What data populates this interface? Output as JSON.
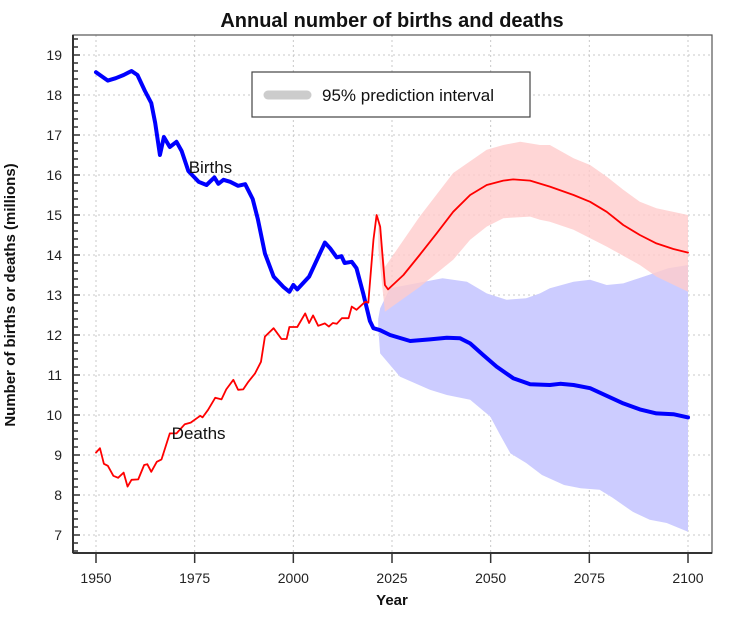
{
  "chart_data": {
    "type": "line",
    "title": "Annual number of births and deaths",
    "xlabel": "Year",
    "ylabel": "Number of births or deaths (millions)",
    "xlim": [
      1950,
      2100
    ],
    "ylim": [
      7,
      19
    ],
    "x_ticks": [
      1950,
      1975,
      2000,
      2025,
      2050,
      2075,
      2100
    ],
    "y_ticks": [
      7,
      8,
      9,
      10,
      11,
      12,
      13,
      14,
      15,
      16,
      17,
      18,
      19
    ],
    "y_minor_step": 0.2,
    "grid": true,
    "legend": {
      "position": "top-center",
      "entries": [
        {
          "label": "95% prediction interval",
          "color": "#cccccc"
        }
      ]
    },
    "series": [
      {
        "name": "Births",
        "label": "Births",
        "color": "#0000ff",
        "kind": "observed+projection",
        "points": [
          [
            1950,
            18.57
          ],
          [
            1953,
            18.36
          ],
          [
            1955,
            18.42
          ],
          [
            1957,
            18.5
          ],
          [
            1959,
            18.6
          ],
          [
            1960.5,
            18.5
          ],
          [
            1962.4,
            18.1
          ],
          [
            1964,
            17.8
          ],
          [
            1965,
            17.3
          ],
          [
            1966.2,
            16.5
          ],
          [
            1967.2,
            16.95
          ],
          [
            1968.7,
            16.7
          ],
          [
            1970.4,
            16.83
          ],
          [
            1971.7,
            16.6
          ],
          [
            1973.4,
            16.1
          ],
          [
            1976,
            15.83
          ],
          [
            1978,
            15.75
          ],
          [
            1980,
            15.94
          ],
          [
            1981,
            15.78
          ],
          [
            1982.3,
            15.88
          ],
          [
            1984,
            15.83
          ],
          [
            1986,
            15.73
          ],
          [
            1987.8,
            15.77
          ],
          [
            1989.7,
            15.4
          ],
          [
            1991,
            14.9
          ],
          [
            1992.8,
            14.04
          ],
          [
            1995,
            13.46
          ],
          [
            1997.5,
            13.2
          ],
          [
            1999,
            13.08
          ],
          [
            2000,
            13.25
          ],
          [
            2001,
            13.14
          ],
          [
            2004,
            13.46
          ],
          [
            2008,
            14.31
          ],
          [
            2009.3,
            14.17
          ],
          [
            2011,
            13.94
          ],
          [
            2012.2,
            13.97
          ],
          [
            2013,
            13.8
          ],
          [
            2014.8,
            13.83
          ],
          [
            2016,
            13.67
          ],
          [
            2017.7,
            13.04
          ],
          [
            2019.4,
            12.35
          ],
          [
            2020.3,
            12.17
          ],
          [
            2022,
            12.12
          ],
          [
            2024.5,
            12.0
          ],
          [
            2029.6,
            11.85
          ],
          [
            2034.6,
            11.89
          ],
          [
            2038.9,
            11.93
          ],
          [
            2042.2,
            11.92
          ],
          [
            2044.8,
            11.79
          ],
          [
            2048.1,
            11.5
          ],
          [
            2051.5,
            11.21
          ],
          [
            2055.7,
            10.92
          ],
          [
            2060,
            10.77
          ],
          [
            2065,
            10.75
          ],
          [
            2067.6,
            10.78
          ],
          [
            2071,
            10.75
          ],
          [
            2075.2,
            10.67
          ],
          [
            2079.4,
            10.48
          ],
          [
            2083.6,
            10.29
          ],
          [
            2087.8,
            10.14
          ],
          [
            2092,
            10.04
          ],
          [
            2096.3,
            10.02
          ],
          [
            2100,
            9.94
          ]
        ],
        "interval_95": {
          "fill": "#ccccff",
          "upper": [
            [
              2021.5,
              12.4
            ],
            [
              2022,
              12.67
            ],
            [
              2024.5,
              13.17
            ],
            [
              2031,
              13.29
            ],
            [
              2037.8,
              13.42
            ],
            [
              2044,
              13.33
            ],
            [
              2049,
              13.04
            ],
            [
              2054,
              12.88
            ],
            [
              2059,
              12.92
            ],
            [
              2062.5,
              13.04
            ],
            [
              2065,
              13.17
            ],
            [
              2071,
              13.33
            ],
            [
              2075.2,
              13.38
            ],
            [
              2079.4,
              13.25
            ],
            [
              2083.6,
              13.29
            ],
            [
              2090,
              13.5
            ],
            [
              2095,
              13.67
            ],
            [
              2100,
              13.75
            ]
          ],
          "lower": [
            [
              2021.5,
              12.2
            ],
            [
              2022,
              11.54
            ],
            [
              2027,
              10.96
            ],
            [
              2034.6,
              10.63
            ],
            [
              2038.9,
              10.5
            ],
            [
              2044.8,
              10.38
            ],
            [
              2049.9,
              9.96
            ],
            [
              2052.4,
              9.5
            ],
            [
              2055,
              9.04
            ],
            [
              2059,
              8.8
            ],
            [
              2063,
              8.5
            ],
            [
              2068.6,
              8.25
            ],
            [
              2072.8,
              8.17
            ],
            [
              2077.6,
              8.13
            ],
            [
              2080.9,
              7.93
            ],
            [
              2086,
              7.58
            ],
            [
              2090.3,
              7.38
            ],
            [
              2094.6,
              7.3
            ],
            [
              2100,
              7.08
            ]
          ]
        }
      },
      {
        "name": "Deaths",
        "label": "Deaths",
        "color": "#ff0000",
        "kind": "observed+projection",
        "points": [
          [
            1950,
            9.06
          ],
          [
            1951,
            9.17
          ],
          [
            1952,
            8.78
          ],
          [
            1953,
            8.73
          ],
          [
            1954.4,
            8.48
          ],
          [
            1955.6,
            8.43
          ],
          [
            1957,
            8.56
          ],
          [
            1958,
            8.21
          ],
          [
            1959,
            8.38
          ],
          [
            1960.7,
            8.39
          ],
          [
            1962.2,
            8.75
          ],
          [
            1963,
            8.77
          ],
          [
            1964,
            8.58
          ],
          [
            1965.4,
            8.83
          ],
          [
            1966.6,
            8.89
          ],
          [
            1968.7,
            9.54
          ],
          [
            1970.4,
            9.54
          ],
          [
            1972.5,
            9.77
          ],
          [
            1974,
            9.81
          ],
          [
            1976.4,
            9.98
          ],
          [
            1977,
            9.94
          ],
          [
            1978.4,
            10.13
          ],
          [
            1980.2,
            10.43
          ],
          [
            1981.8,
            10.39
          ],
          [
            1983,
            10.64
          ],
          [
            1984.8,
            10.88
          ],
          [
            1986,
            10.63
          ],
          [
            1987.3,
            10.64
          ],
          [
            1988.6,
            10.83
          ],
          [
            1990.3,
            11.04
          ],
          [
            1991.8,
            11.33
          ],
          [
            1992.8,
            11.96
          ],
          [
            1995,
            12.17
          ],
          [
            1997,
            11.9
          ],
          [
            1998.3,
            11.9
          ],
          [
            1999,
            12.2
          ],
          [
            2001,
            12.2
          ],
          [
            2003,
            12.54
          ],
          [
            2004,
            12.3
          ],
          [
            2005,
            12.49
          ],
          [
            2006.3,
            12.23
          ],
          [
            2008,
            12.29
          ],
          [
            2009,
            12.21
          ],
          [
            2010,
            12.3
          ],
          [
            2011,
            12.28
          ],
          [
            2012.3,
            12.42
          ],
          [
            2014,
            12.42
          ],
          [
            2014.8,
            12.71
          ],
          [
            2016,
            12.63
          ],
          [
            2018.2,
            12.83
          ],
          [
            2019,
            12.81
          ],
          [
            2020.3,
            14.38
          ],
          [
            2021.1,
            15.0
          ],
          [
            2022,
            14.71
          ],
          [
            2023.2,
            13.25
          ],
          [
            2024,
            13.14
          ],
          [
            2027.9,
            13.5
          ],
          [
            2032,
            14.0
          ],
          [
            2036.3,
            14.54
          ],
          [
            2040.5,
            15.08
          ],
          [
            2044.8,
            15.5
          ],
          [
            2049,
            15.75
          ],
          [
            2053.2,
            15.86
          ],
          [
            2055.7,
            15.89
          ],
          [
            2060,
            15.86
          ],
          [
            2065,
            15.71
          ],
          [
            2071,
            15.5
          ],
          [
            2075.2,
            15.33
          ],
          [
            2079.4,
            15.08
          ],
          [
            2083.6,
            14.75
          ],
          [
            2087.8,
            14.5
          ],
          [
            2092,
            14.29
          ],
          [
            2096.3,
            14.15
          ],
          [
            2100,
            14.06
          ]
        ],
        "interval_95": {
          "fill": "#ffcccc",
          "upper": [
            [
              2021.5,
              15.05
            ],
            [
              2023.2,
              13.7
            ],
            [
              2032,
              14.96
            ],
            [
              2040.5,
              16.05
            ],
            [
              2049,
              16.63
            ],
            [
              2053.2,
              16.75
            ],
            [
              2057.5,
              16.83
            ],
            [
              2062.5,
              16.75
            ],
            [
              2065,
              16.75
            ],
            [
              2071,
              16.42
            ],
            [
              2075.2,
              16.25
            ],
            [
              2079.4,
              15.96
            ],
            [
              2083.6,
              15.63
            ],
            [
              2087.8,
              15.33
            ],
            [
              2092,
              15.17
            ],
            [
              2100,
              15.0
            ]
          ],
          "lower": [
            [
              2021.5,
              14.2
            ],
            [
              2023.2,
              12.58
            ],
            [
              2032,
              13.2
            ],
            [
              2040.5,
              13.88
            ],
            [
              2044.8,
              14.38
            ],
            [
              2049,
              14.71
            ],
            [
              2053.2,
              14.92
            ],
            [
              2060,
              14.96
            ],
            [
              2062.5,
              14.88
            ],
            [
              2065,
              14.83
            ],
            [
              2071,
              14.63
            ],
            [
              2079.4,
              14.21
            ],
            [
              2087.8,
              13.75
            ],
            [
              2092,
              13.46
            ],
            [
              2100,
              13.08
            ]
          ]
        }
      }
    ],
    "annotations": [
      {
        "text": "Births",
        "x": 1979,
        "y": 16.2
      },
      {
        "text": "Deaths",
        "x": 1976,
        "y": 9.55
      }
    ]
  }
}
